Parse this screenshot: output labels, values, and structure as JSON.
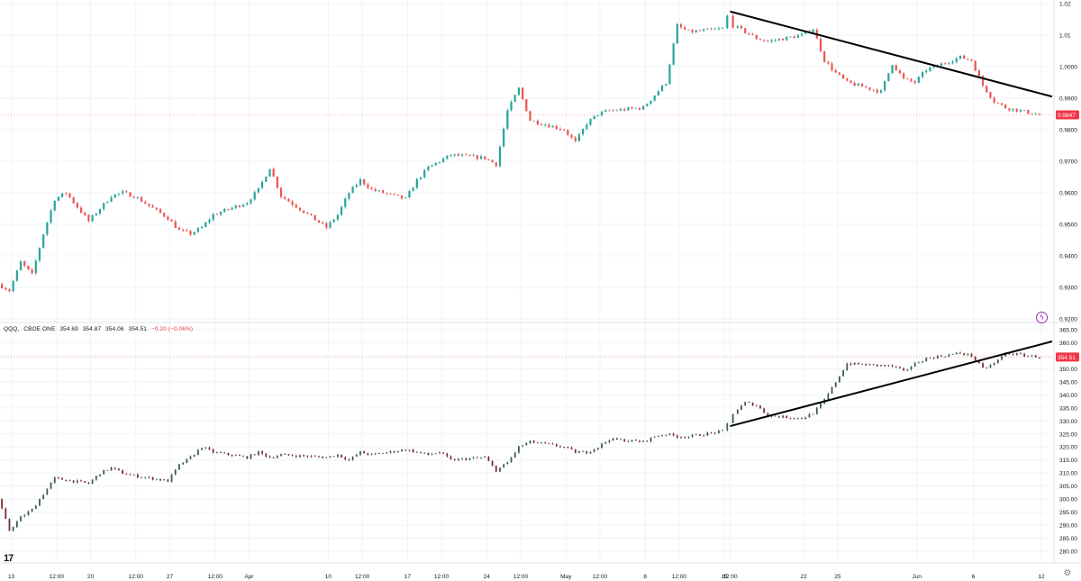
{
  "chart_data": [
    {
      "type": "candlestick",
      "title": "",
      "panel": "upper",
      "ylim": [
        0.92,
        1.02
      ],
      "y_ticks": [
        "1.02",
        "1.01",
        "1.0000",
        "0.9900",
        "0.9800",
        "0.9700",
        "0.9600",
        "0.9500",
        "0.9400",
        "0.9300",
        "0.9200"
      ],
      "y_tick_values": [
        1.02,
        1.01,
        1.0,
        0.99,
        0.98,
        0.97,
        0.96,
        0.95,
        0.94,
        0.93,
        0.92
      ],
      "last_price_label": "0.9847",
      "last_price": 0.9847,
      "trendline": {
        "from": {
          "x": "May 15 12:00",
          "y": 1.0175
        },
        "to": {
          "x": "Jun 12",
          "y": 0.9905
        }
      },
      "path_points": [
        [
          "Mar 12",
          0.931
        ],
        [
          "Mar 13",
          0.929
        ],
        [
          "Mar 14",
          0.938
        ],
        [
          "Mar 15",
          0.934
        ],
        [
          "Mar 16",
          0.947
        ],
        [
          "Mar 17",
          0.958
        ],
        [
          "Mar 18",
          0.96
        ],
        [
          "Mar 20",
          0.951
        ],
        [
          "Mar 21",
          0.955
        ],
        [
          "Mar 22",
          0.959
        ],
        [
          "Mar 23",
          0.96
        ],
        [
          "Mar 24",
          0.959
        ],
        [
          "Mar 27",
          0.952
        ],
        [
          "Mar 28",
          0.948
        ],
        [
          "Mar 29",
          0.947
        ],
        [
          "Mar 30",
          0.949
        ],
        [
          "Mar 31",
          0.953
        ],
        [
          "Apr 3",
          0.957
        ],
        [
          "Apr 4",
          0.961
        ],
        [
          "Apr 5",
          0.968
        ],
        [
          "Apr 6",
          0.959
        ],
        [
          "Apr 10",
          0.949
        ],
        [
          "Apr 11",
          0.953
        ],
        [
          "Apr 12",
          0.96
        ],
        [
          "Apr 13",
          0.964
        ],
        [
          "Apr 14",
          0.961
        ],
        [
          "Apr 17",
          0.958
        ],
        [
          "Apr 18",
          0.964
        ],
        [
          "Apr 19",
          0.968
        ],
        [
          "Apr 20",
          0.97
        ],
        [
          "Apr 21",
          0.972
        ],
        [
          "Apr 24",
          0.971
        ],
        [
          "Apr 25",
          0.969
        ],
        [
          "Apr 26",
          0.986
        ],
        [
          "Apr 27",
          0.993
        ],
        [
          "Apr 28",
          0.983
        ],
        [
          "May 1",
          0.98
        ],
        [
          "May 2",
          0.976
        ],
        [
          "May 3",
          0.982
        ],
        [
          "May 4",
          0.985
        ],
        [
          "May 5",
          0.986
        ],
        [
          "May 8",
          0.987
        ],
        [
          "May 9",
          0.991
        ],
        [
          "May 10",
          0.995
        ],
        [
          "May 11",
          1.013
        ],
        [
          "May 12",
          1.011
        ],
        [
          "May 15",
          1.012
        ],
        [
          "May 15 12:00",
          1.016
        ],
        [
          "May 16",
          1.013
        ],
        [
          "May 17",
          1.011
        ],
        [
          "May 18",
          1.009
        ],
        [
          "May 19",
          1.008
        ],
        [
          "May 22",
          1.01
        ],
        [
          "May 23",
          1.012
        ],
        [
          "May 24",
          1.002
        ],
        [
          "May 25",
          0.998
        ],
        [
          "May 26",
          0.995
        ],
        [
          "May 29",
          0.992
        ],
        [
          "May 30",
          1.001
        ],
        [
          "May 31",
          0.996
        ],
        [
          "Jun 1",
          0.995
        ],
        [
          "Jun 2",
          0.999
        ],
        [
          "Jun 5",
          1.003
        ],
        [
          "Jun 6",
          1.002
        ],
        [
          "Jun 7",
          0.994
        ],
        [
          "Jun 8",
          0.989
        ],
        [
          "Jun 9",
          0.987
        ],
        [
          "Jun 12",
          0.9847
        ]
      ]
    },
    {
      "type": "candlestick",
      "title": "",
      "panel": "lower",
      "ylim": [
        280.0,
        365.0
      ],
      "y_ticks": [
        "365.00",
        "360.00",
        "355.00",
        "350.00",
        "345.00",
        "340.00",
        "335.00",
        "330.00",
        "325.00",
        "320.00",
        "315.00",
        "310.00",
        "305.00",
        "300.00",
        "295.00",
        "290.00",
        "285.00",
        "280.00"
      ],
      "y_tick_values": [
        365,
        360,
        355,
        350,
        345,
        340,
        335,
        330,
        325,
        320,
        315,
        310,
        305,
        300,
        295,
        290,
        285,
        280
      ],
      "last_price_label": "354.51",
      "last_price": 354.51,
      "trendline": {
        "from": {
          "x": "May 15 12:00",
          "y": 328.0
        },
        "to": {
          "x": "Jun 12",
          "y": 360.5
        }
      },
      "path_points": [
        [
          "Mar 12",
          300.0
        ],
        [
          "Mar 13",
          288.0
        ],
        [
          "Mar 14",
          293.0
        ],
        [
          "Mar 15",
          296.0
        ],
        [
          "Mar 16",
          302.0
        ],
        [
          "Mar 17",
          308.0
        ],
        [
          "Mar 20",
          306.0
        ],
        [
          "Mar 21",
          310.0
        ],
        [
          "Mar 22",
          312.0
        ],
        [
          "Mar 23",
          310.0
        ],
        [
          "Mar 24",
          309.0
        ],
        [
          "Mar 27",
          307.0
        ],
        [
          "Mar 28",
          313.0
        ],
        [
          "Mar 29",
          316.0
        ],
        [
          "Mar 30",
          320.0
        ],
        [
          "Mar 31",
          318.0
        ],
        [
          "Apr 3",
          316.0
        ],
        [
          "Apr 4",
          318.0
        ],
        [
          "Apr 5",
          316.0
        ],
        [
          "Apr 6",
          317.0
        ],
        [
          "Apr 10",
          316.0
        ],
        [
          "Apr 11",
          317.0
        ],
        [
          "Apr 12",
          315.0
        ],
        [
          "Apr 13",
          318.0
        ],
        [
          "Apr 14",
          317.0
        ],
        [
          "Apr 17",
          319.0
        ],
        [
          "Apr 18",
          318.0
        ],
        [
          "Apr 19",
          317.0
        ],
        [
          "Apr 20",
          318.0
        ],
        [
          "Apr 21",
          315.0
        ],
        [
          "Apr 24",
          316.0
        ],
        [
          "Apr 25",
          311.0
        ],
        [
          "Apr 26",
          314.0
        ],
        [
          "Apr 27",
          320.0
        ],
        [
          "Apr 28",
          322.0
        ],
        [
          "May 1",
          320.0
        ],
        [
          "May 2",
          318.0
        ],
        [
          "May 3",
          318.0
        ],
        [
          "May 4",
          320.0
        ],
        [
          "May 5",
          323.0
        ],
        [
          "May 8",
          322.0
        ],
        [
          "May 9",
          324.0
        ],
        [
          "May 10",
          325.0
        ],
        [
          "May 11",
          324.0
        ],
        [
          "May 12",
          324.0
        ],
        [
          "May 15",
          326.0
        ],
        [
          "May 15 12:00",
          329.0
        ],
        [
          "May 16",
          333.0
        ],
        [
          "May 17",
          337.0
        ],
        [
          "May 18",
          336.0
        ],
        [
          "May 19",
          332.0
        ],
        [
          "May 22",
          331.0
        ],
        [
          "May 23",
          333.0
        ],
        [
          "May 24",
          338.0
        ],
        [
          "May 25",
          345.0
        ],
        [
          "May 26",
          352.0
        ],
        [
          "May 30",
          351.0
        ],
        [
          "May 31",
          349.0
        ],
        [
          "Jun 1",
          352.0
        ],
        [
          "Jun 2",
          354.0
        ],
        [
          "Jun 5",
          356.0
        ],
        [
          "Jun 6",
          355.0
        ],
        [
          "Jun 7",
          350.0
        ],
        [
          "Jun 8",
          352.0
        ],
        [
          "Jun 9",
          356.0
        ],
        [
          "Jun 12",
          354.51
        ]
      ]
    }
  ],
  "x_axis": {
    "ticks": [
      "13",
      "12:00",
      "20",
      "12:00",
      "27",
      "12:00",
      "Apr",
      "10",
      "12:00",
      "17",
      "12:00",
      "24",
      "12:00",
      "May",
      "12:00",
      "8",
      "12:00",
      "15",
      "12:00",
      "22",
      "25",
      "Jun",
      "6",
      "12"
    ],
    "tick_dates": [
      "Mar 13",
      "Mar 17",
      "Mar 20",
      "Mar 24",
      "Mar 27",
      "Mar 31",
      "Apr 3",
      "Apr 10",
      "Apr 13",
      "Apr 17",
      "Apr 20",
      "Apr 24",
      "Apr 27",
      "May 1",
      "May 4",
      "May 8",
      "May 11",
      "May 15",
      "May 15 12:00",
      "May 22",
      "May 25",
      "Jun 1",
      "Jun 6",
      "Jun 12"
    ]
  },
  "qqq_legend": {
    "symbol": "QQQ",
    "source": "CBOE ONE",
    "open": "354.69",
    "high": "354.87",
    "low": "354.06",
    "close": "354.51",
    "change": "−0.20 (−0.06%)"
  },
  "colors": {
    "up": "#26a69a",
    "down": "#ef5350",
    "up_dark": "#3d5a52",
    "down_dark": "#7a2e2e",
    "grid": "#f0f3fa",
    "axis_text": "#131722",
    "trendline": "#000000",
    "price_tag": "#f23645"
  },
  "icons": {
    "logo": "tradingview-logo-icon",
    "bolt": "lightning-icon",
    "settings": "gear-icon"
  }
}
